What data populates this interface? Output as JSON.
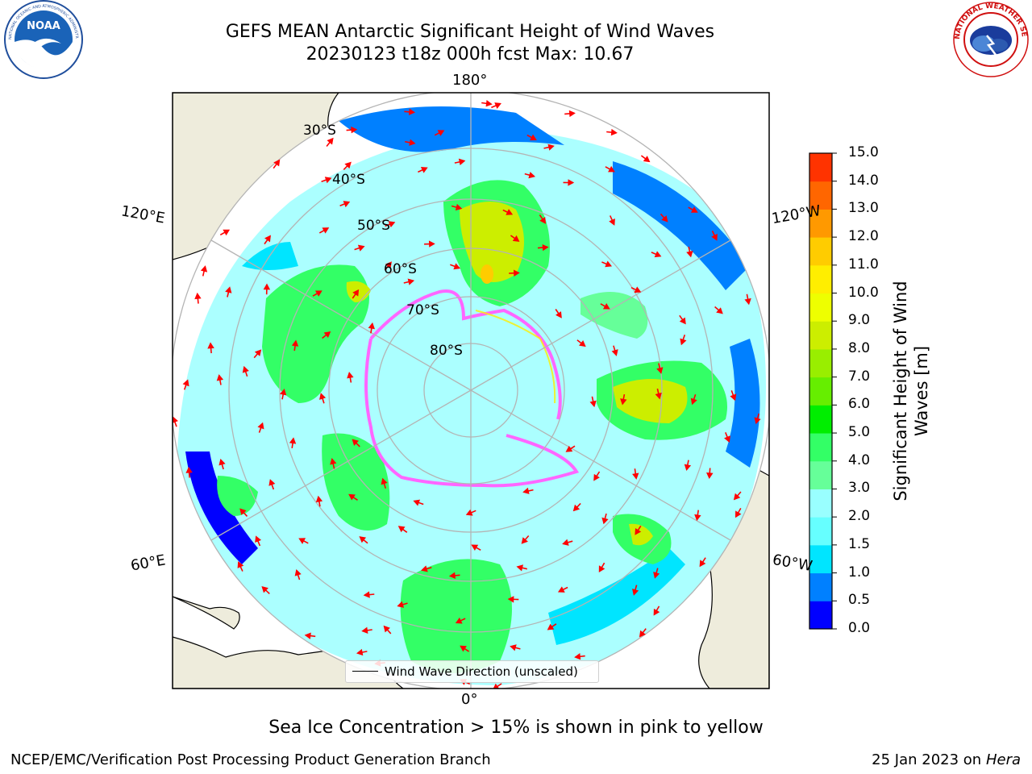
{
  "header": {
    "title_line1": "GEFS MEAN Antarctic Significant Height of Wind Waves",
    "title_line2": "20230123 t18z 000h fcst   Max: 10.67"
  },
  "logos": {
    "left": {
      "icon": "noaa-logo",
      "text": "NOAA",
      "ring_text": "NATIONAL OCEANIC AND ATMOSPHERIC ADMINISTRATION · U.S. DEPARTMENT OF COMMERCE"
    },
    "right": {
      "icon": "national-weather-service-logo",
      "ring_text": "NATIONAL WEATHER SERVICE"
    }
  },
  "map": {
    "projection": "south-polar-stereographic",
    "longitude_labels": {
      "top": "180°",
      "bottom": "0°",
      "left_upper": "120°E",
      "left_lower": "60°E",
      "right_upper": "120°W",
      "right_lower": "60°W"
    },
    "latitude_labels": [
      "30°S",
      "40°S",
      "50°S",
      "60°S",
      "70°S",
      "80°S"
    ],
    "land_color": "#eeecdc",
    "ocean_no_data_color": "#ffffff",
    "sea_ice_color": "#ff66ff",
    "arrow_color": "#ff0000",
    "graticule_color": "#b4b4b4",
    "legend_label": "Wind Wave Direction (unscaled)"
  },
  "colorbar": {
    "label": "Significant Height of Wind Waves [m]",
    "label_line1": "Significant Height of Wind",
    "label_line2": "Waves [m]",
    "ticks": [
      "0.0",
      "0.5",
      "1.0",
      "1.5",
      "2.0",
      "3.0",
      "4.0",
      "5.0",
      "6.0",
      "7.0",
      "8.0",
      "9.0",
      "10.0",
      "11.0",
      "12.0",
      "13.0",
      "14.0",
      "15.0"
    ],
    "colors": [
      "#0000ff",
      "#0080ff",
      "#00e5ff",
      "#66ffff",
      "#99ffff",
      "#66ff99",
      "#33ff66",
      "#00ee00",
      "#66ee00",
      "#99ee00",
      "#ccee00",
      "#eeff00",
      "#ffee00",
      "#ffcc00",
      "#ff9900",
      "#ff6600",
      "#ff3300"
    ]
  },
  "footer": {
    "ice_note": "Sea Ice Concentration > 15% is shown in pink to yellow",
    "credit": "NCEP/EMC/Verification Post Processing Product Generation Branch",
    "date_prefix": "25 Jan 2023 on ",
    "date_machine": "Hera"
  }
}
